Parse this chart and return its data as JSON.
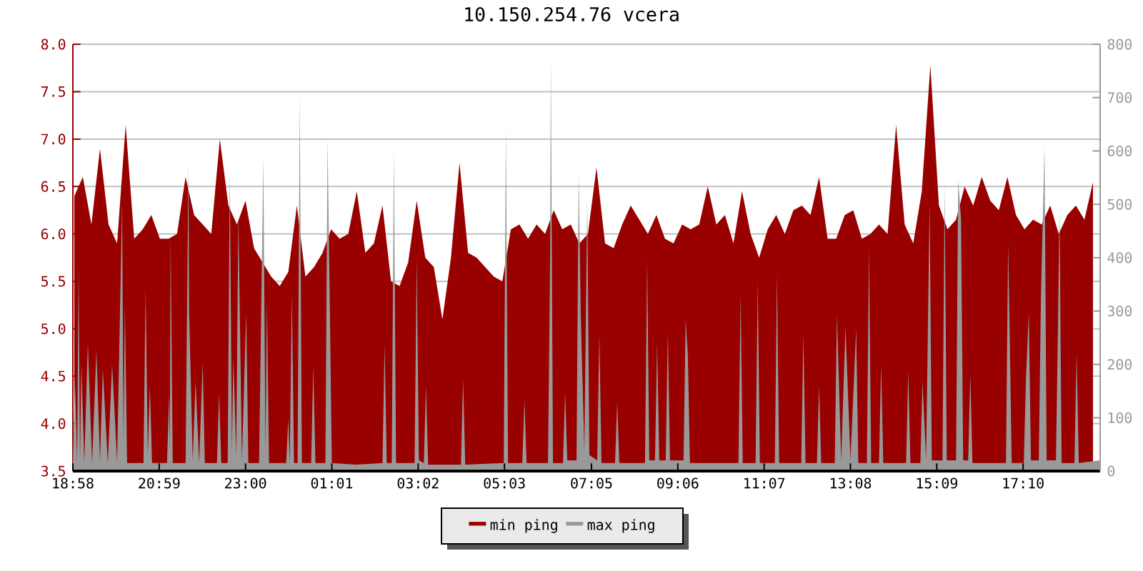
{
  "chart_data": {
    "type": "area",
    "title": "10.150.254.76 vcera",
    "xlim": [
      "2000-01-01T18:58",
      "2000-01-02T18:58"
    ],
    "xticks": [
      {
        "value": "2000-01-01T18:58",
        "label": "18:58"
      },
      {
        "value": "2000-01-01T20:59",
        "label": "20:59"
      },
      {
        "value": "2000-01-01T23:00",
        "label": "23:00"
      },
      {
        "value": "2000-01-02T01:01",
        "label": "01:01"
      },
      {
        "value": "2000-01-02T03:02",
        "label": "03:02"
      },
      {
        "value": "2000-01-02T05:03",
        "label": "05:03"
      },
      {
        "value": "2000-01-02T07:05",
        "label": "07:05"
      },
      {
        "value": "2000-01-02T09:06",
        "label": "09:06"
      },
      {
        "value": "2000-01-02T11:07",
        "label": "11:07"
      },
      {
        "value": "2000-01-02T13:08",
        "label": "13:08"
      },
      {
        "value": "2000-01-02T15:09",
        "label": "15:09"
      },
      {
        "value": "2000-01-02T17:10",
        "label": "17:10"
      }
    ],
    "ylim": [
      3.5,
      8.0
    ],
    "yticks": [
      3.5,
      {
        "value": 4,
        "label": "4.0"
      },
      4.5,
      {
        "value": 5,
        "label": "5.0"
      },
      5.5,
      {
        "value": 6,
        "label": "6.0"
      },
      6.5,
      {
        "value": 7,
        "label": "7.0"
      },
      7.5,
      {
        "value": 8,
        "label": "8.0"
      }
    ],
    "y2lim": [
      0,
      800
    ],
    "y2ticks": [
      0,
      100,
      200,
      300,
      400,
      500,
      600,
      700,
      800
    ],
    "grid": "y",
    "legend": "bottom",
    "series": [
      {
        "name": "min ping",
        "color": "#990000",
        "x": [
          "2000-01-01T19:00",
          "2000-01-01T19:12",
          "2000-01-01T19:24",
          "2000-01-01T19:36",
          "2000-01-01T19:48",
          "2000-01-01T20:00",
          "2000-01-01T20:12",
          "2000-01-01T20:24",
          "2000-01-01T20:36",
          "2000-01-01T20:48",
          "2000-01-01T21:00",
          "2000-01-01T21:12",
          "2000-01-01T21:24",
          "2000-01-01T21:36",
          "2000-01-01T21:48",
          "2000-01-01T22:00",
          "2000-01-01T22:12",
          "2000-01-01T22:24",
          "2000-01-01T22:36",
          "2000-01-01T22:48",
          "2000-01-01T23:00",
          "2000-01-01T23:12",
          "2000-01-01T23:24",
          "2000-01-01T23:36",
          "2000-01-01T23:48",
          "2000-01-02T00:00",
          "2000-01-02T00:12",
          "2000-01-02T00:24",
          "2000-01-02T00:36",
          "2000-01-02T00:48",
          "2000-01-02T01:00",
          "2000-01-02T01:12",
          "2000-01-02T01:24",
          "2000-01-02T01:36",
          "2000-01-02T01:48",
          "2000-01-02T02:00",
          "2000-01-02T02:12",
          "2000-01-02T02:24",
          "2000-01-02T02:36",
          "2000-01-02T02:48",
          "2000-01-02T03:00",
          "2000-01-02T03:12",
          "2000-01-02T03:24",
          "2000-01-02T03:36",
          "2000-01-02T03:48",
          "2000-01-02T04:00",
          "2000-01-02T04:12",
          "2000-01-02T04:24",
          "2000-01-02T04:36",
          "2000-01-02T04:48",
          "2000-01-02T05:00",
          "2000-01-02T05:12",
          "2000-01-02T05:24",
          "2000-01-02T05:36",
          "2000-01-02T05:48",
          "2000-01-02T06:00",
          "2000-01-02T06:12",
          "2000-01-02T06:24",
          "2000-01-02T06:36",
          "2000-01-02T06:48",
          "2000-01-02T07:00",
          "2000-01-02T07:12",
          "2000-01-02T07:24",
          "2000-01-02T07:36",
          "2000-01-02T07:48",
          "2000-01-02T08:00",
          "2000-01-02T08:12",
          "2000-01-02T08:24",
          "2000-01-02T08:36",
          "2000-01-02T08:48",
          "2000-01-02T09:00",
          "2000-01-02T09:12",
          "2000-01-02T09:24",
          "2000-01-02T09:36",
          "2000-01-02T09:48",
          "2000-01-02T10:00",
          "2000-01-02T10:12",
          "2000-01-02T10:24",
          "2000-01-02T10:36",
          "2000-01-02T10:48",
          "2000-01-02T11:00",
          "2000-01-02T11:12",
          "2000-01-02T11:24",
          "2000-01-02T11:36",
          "2000-01-02T11:48",
          "2000-01-02T12:00",
          "2000-01-02T12:12",
          "2000-01-02T12:24",
          "2000-01-02T12:36",
          "2000-01-02T12:48",
          "2000-01-02T13:00",
          "2000-01-02T13:12",
          "2000-01-02T13:24",
          "2000-01-02T13:36",
          "2000-01-02T13:48",
          "2000-01-02T14:00",
          "2000-01-02T14:12",
          "2000-01-02T14:24",
          "2000-01-02T14:36",
          "2000-01-02T14:48",
          "2000-01-02T15:00",
          "2000-01-02T15:12",
          "2000-01-02T15:24",
          "2000-01-02T15:36",
          "2000-01-02T15:48",
          "2000-01-02T16:00",
          "2000-01-02T16:12",
          "2000-01-02T16:24",
          "2000-01-02T16:36",
          "2000-01-02T16:48",
          "2000-01-02T17:00",
          "2000-01-02T17:12",
          "2000-01-02T17:24",
          "2000-01-02T17:36",
          "2000-01-02T17:48",
          "2000-01-02T18:00",
          "2000-01-02T18:12",
          "2000-01-02T18:24",
          "2000-01-02T18:36",
          "2000-01-02T18:48"
        ],
        "values": [
          6.4,
          6.6,
          6.1,
          6.9,
          6.1,
          5.9,
          7.15,
          5.95,
          6.05,
          6.2,
          5.95,
          5.95,
          6.0,
          6.6,
          6.2,
          6.1,
          6.0,
          7.0,
          6.3,
          6.1,
          6.35,
          5.85,
          5.7,
          5.55,
          5.45,
          5.6,
          6.3,
          5.55,
          5.65,
          5.8,
          6.05,
          5.95,
          6.0,
          6.45,
          5.8,
          5.9,
          6.3,
          5.5,
          5.45,
          5.7,
          6.35,
          5.75,
          5.65,
          5.1,
          5.75,
          6.75,
          5.8,
          5.75,
          5.65,
          5.55,
          5.5,
          6.05,
          6.1,
          5.95,
          6.1,
          6.0,
          6.25,
          6.05,
          6.1,
          5.9,
          6.0,
          6.7,
          5.9,
          5.85,
          6.1,
          6.3,
          6.15,
          6.0,
          6.2,
          5.95,
          5.9,
          6.1,
          6.05,
          6.1,
          6.5,
          6.1,
          6.2,
          5.9,
          6.45,
          6.0,
          5.75,
          6.05,
          6.2,
          6.0,
          6.25,
          6.3,
          6.2,
          6.6,
          5.95,
          5.95,
          6.2,
          6.25,
          5.95,
          6.0,
          6.1,
          6.0,
          7.15,
          6.1,
          5.9,
          6.45,
          7.78,
          6.3,
          6.05,
          6.15,
          6.5,
          6.3,
          6.6,
          6.35,
          6.25,
          6.6,
          6.2,
          6.05,
          6.15,
          6.1,
          6.3,
          6.0,
          6.2,
          6.3,
          6.15,
          6.55
        ]
      },
      {
        "name": "max ping",
        "color": "#999999",
        "axis": "y2",
        "x": [
          "2000-01-01T18:58",
          "2000-01-01T19:01",
          "2000-01-01T19:04",
          "2000-01-01T19:06",
          "2000-01-01T19:08",
          "2000-01-01T19:10",
          "2000-01-01T19:14",
          "2000-01-01T19:19",
          "2000-01-01T19:25",
          "2000-01-01T19:31",
          "2000-01-01T19:36",
          "2000-01-01T19:40",
          "2000-01-01T19:47",
          "2000-01-01T19:53",
          "2000-01-01T20:00",
          "2000-01-01T20:07",
          "2000-01-01T20:09",
          "2000-01-01T20:11",
          "2000-01-01T20:14",
          "2000-01-01T20:37",
          "2000-01-01T20:40",
          "2000-01-01T20:43",
          "2000-01-01T20:46",
          "2000-01-01T20:49",
          "2000-01-01T21:10",
          "2000-01-01T21:13",
          "2000-01-01T21:14",
          "2000-01-01T21:15",
          "2000-01-01T21:18",
          "2000-01-01T21:36",
          "2000-01-01T21:40",
          "2000-01-01T21:41",
          "2000-01-01T21:46",
          "2000-01-01T21:50",
          "2000-01-01T21:55",
          "2000-01-01T22:00",
          "2000-01-01T22:03",
          "2000-01-01T22:20",
          "2000-01-01T22:23",
          "2000-01-01T22:26",
          "2000-01-01T22:35",
          "2000-01-01T22:38",
          "2000-01-01T22:41",
          "2000-01-01T22:43",
          "2000-01-01T22:47",
          "2000-01-01T22:50",
          "2000-01-01T22:55",
          "2000-01-01T23:01",
          "2000-01-01T23:04",
          "2000-01-01T23:19",
          "2000-01-01T23:22",
          "2000-01-01T23:25",
          "2000-01-01T23:28",
          "2000-01-01T23:30",
          "2000-01-01T23:33",
          "2000-01-01T23:57",
          "2000-01-02T00:00",
          "2000-01-02T00:02",
          "2000-01-02T00:05",
          "2000-01-02T00:08",
          "2000-01-02T00:13",
          "2000-01-02T00:16",
          "2000-01-02T00:19",
          "2000-01-02T00:32",
          "2000-01-02T00:35",
          "2000-01-02T00:38",
          "2000-01-02T00:52",
          "2000-01-02T00:55",
          "2000-01-02T00:58",
          "2000-01-02T01:01",
          "2000-01-02T01:36",
          "2000-01-02T02:12",
          "2000-01-02T02:15",
          "2000-01-02T02:18",
          "2000-01-02T02:25",
          "2000-01-02T02:28",
          "2000-01-02T02:31",
          "2000-01-02T02:57",
          "2000-01-02T03:00",
          "2000-01-02T03:03",
          "2000-01-02T03:10",
          "2000-01-02T03:13",
          "2000-01-02T03:16",
          "2000-01-02T04:02",
          "2000-01-02T04:05",
          "2000-01-02T04:08",
          "2000-01-02T05:02",
          "2000-01-02T05:05",
          "2000-01-02T05:08",
          "2000-01-02T05:28",
          "2000-01-02T05:31",
          "2000-01-02T05:34",
          "2000-01-02T06:04",
          "2000-01-02T06:07",
          "2000-01-02T06:08",
          "2000-01-02T06:11",
          "2000-01-02T06:25",
          "2000-01-02T06:28",
          "2000-01-02T06:31",
          "2000-01-02T06:44",
          "2000-01-02T06:47",
          "2000-01-02T06:50",
          "2000-01-02T06:55",
          "2000-01-02T06:59",
          "2000-01-02T07:02",
          "2000-01-02T07:13",
          "2000-01-02T07:16",
          "2000-01-02T07:19",
          "2000-01-02T07:38",
          "2000-01-02T07:41",
          "2000-01-02T07:44",
          "2000-01-02T08:20",
          "2000-01-02T08:23",
          "2000-01-02T08:26",
          "2000-01-02T08:34",
          "2000-01-02T08:37",
          "2000-01-02T08:40",
          "2000-01-02T08:49",
          "2000-01-02T08:52",
          "2000-01-02T08:55",
          "2000-01-02T09:14",
          "2000-01-02T09:17",
          "2000-01-02T09:20",
          "2000-01-02T09:23",
          "2000-01-02T10:31",
          "2000-01-02T10:34",
          "2000-01-02T10:37",
          "2000-01-02T10:55",
          "2000-01-02T10:58",
          "2000-01-02T11:01",
          "2000-01-02T11:22",
          "2000-01-02T11:25",
          "2000-01-02T11:28",
          "2000-01-02T11:59",
          "2000-01-02T12:02",
          "2000-01-02T12:05",
          "2000-01-02T12:21",
          "2000-01-02T12:24",
          "2000-01-02T12:27",
          "2000-01-02T12:46",
          "2000-01-02T12:49",
          "2000-01-02T12:55",
          "2000-01-02T13:01",
          "2000-01-02T13:08",
          "2000-01-02T13:16",
          "2000-01-02T13:19",
          "2000-01-02T13:31",
          "2000-01-02T13:34",
          "2000-01-02T13:37",
          "2000-01-02T13:48",
          "2000-01-02T13:51",
          "2000-01-02T13:54",
          "2000-01-02T14:26",
          "2000-01-02T14:29",
          "2000-01-02T14:32",
          "2000-01-02T14:46",
          "2000-01-02T14:49",
          "2000-01-02T14:54",
          "2000-01-02T14:59",
          "2000-01-02T15:02",
          "2000-01-02T15:17",
          "2000-01-02T15:20",
          "2000-01-02T15:23",
          "2000-01-02T15:36",
          "2000-01-02T15:39",
          "2000-01-02T15:43",
          "2000-01-02T15:46",
          "2000-01-02T15:53",
          "2000-01-02T15:56",
          "2000-01-02T15:59",
          "2000-01-02T16:46",
          "2000-01-02T16:49",
          "2000-01-02T16:51",
          "2000-01-02T16:54",
          "2000-01-02T17:11",
          "2000-01-02T17:14",
          "2000-01-02T17:18",
          "2000-01-02T17:21",
          "2000-01-02T17:32",
          "2000-01-02T17:35",
          "2000-01-02T17:40",
          "2000-01-02T17:43",
          "2000-01-02T17:56",
          "2000-01-02T17:59",
          "2000-01-02T18:01",
          "2000-01-02T18:04",
          "2000-01-02T18:22",
          "2000-01-02T18:25",
          "2000-01-02T18:28",
          "2000-01-02T18:57"
        ],
        "values": [
          15,
          169,
          20,
          383,
          25,
          200,
          15,
          240,
          15,
          227,
          18,
          191,
          15,
          200,
          18,
          503,
          60,
          311,
          15,
          15,
          343,
          30,
          160,
          15,
          15,
          147,
          40,
          442,
          15,
          15,
          578,
          298,
          20,
          169,
          15,
          205,
          15,
          15,
          147,
          15,
          15,
          562,
          40,
          213,
          30,
          480,
          20,
          298,
          15,
          15,
          302,
          587,
          40,
          320,
          15,
          15,
          98,
          15,
          334,
          15,
          15,
          705,
          15,
          15,
          196,
          15,
          15,
          624,
          329,
          15,
          12,
          15,
          240,
          15,
          15,
          603,
          15,
          15,
          400,
          20,
          15,
          160,
          12,
          12,
          173,
          12,
          15,
          645,
          15,
          15,
          133,
          15,
          15,
          398,
          781,
          15,
          15,
          147,
          20,
          20,
          561,
          289,
          40,
          510,
          30,
          20,
          258,
          15,
          15,
          129,
          15,
          15,
          396,
          20,
          20,
          240,
          20,
          20,
          262,
          20,
          20,
          285,
          218,
          15,
          15,
          334,
          15,
          15,
          356,
          15,
          15,
          369,
          15,
          15,
          258,
          15,
          15,
          160,
          15,
          15,
          294,
          20,
          271,
          20,
          267,
          15,
          15,
          418,
          15,
          15,
          200,
          15,
          15,
          187,
          15,
          15,
          169,
          20,
          503,
          20,
          20,
          538,
          20,
          20,
          547,
          472,
          20,
          20,
          182,
          15,
          15,
          427,
          276,
          15,
          15,
          173,
          298,
          20,
          20,
          325,
          610,
          20,
          20,
          280,
          494,
          15,
          15,
          222,
          15,
          20
        ]
      }
    ]
  }
}
